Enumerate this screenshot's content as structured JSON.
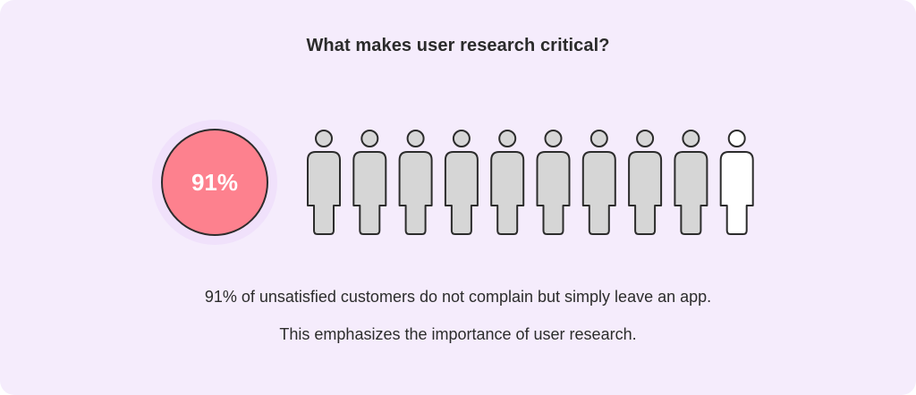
{
  "title": "What makes user research critical?",
  "stat": {
    "value": "91%",
    "fraction": 0.9,
    "fill_color": "#fd818e"
  },
  "people": {
    "total": 10,
    "highlighted": 9,
    "highlight_color": "#d6d6d6",
    "rest_color": "#ffffff",
    "outline_color": "#2c2c2c"
  },
  "caption": {
    "line1": "91% of unsatisfied customers do not complain but simply leave an app.",
    "line2": "This emphasizes the importance of user research."
  }
}
